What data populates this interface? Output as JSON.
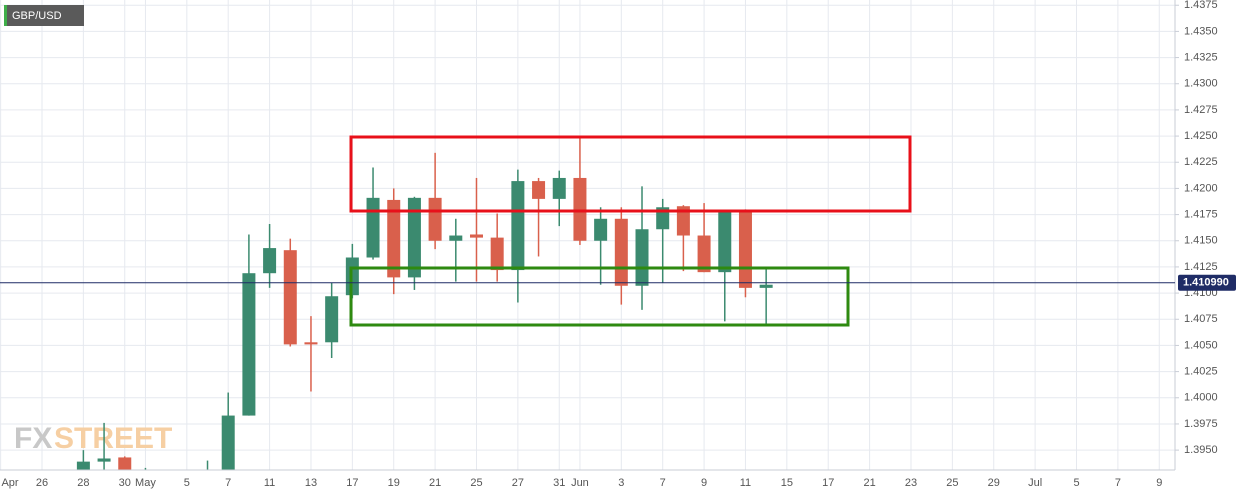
{
  "chart_data": {
    "type": "candlestick",
    "title": "GBP/USD",
    "watermark": {
      "left": "FX",
      "right": "STREET"
    },
    "categories": [
      "Apr",
      null,
      "26",
      null,
      "28",
      null,
      "30",
      "May",
      null,
      "5",
      null,
      "7",
      null,
      "11",
      null,
      "13",
      null,
      "17",
      null,
      "19",
      null,
      "21",
      null,
      "25",
      null,
      "27",
      null,
      "31",
      "Jun",
      null,
      "3",
      null,
      "7",
      null,
      "9",
      null,
      "11",
      null,
      "15",
      null,
      "17",
      null,
      "21",
      null,
      "23",
      null,
      "25",
      null,
      "29",
      null,
      "Jul",
      null,
      "5",
      null,
      "7",
      null,
      "9"
    ],
    "series": {
      "open": [
        null,
        null,
        null,
        null,
        1.3925,
        1.3939,
        1.3943,
        1.3915,
        null,
        null,
        1.391,
        1.3915,
        1.3983,
        1.4119,
        1.4141,
        1.4053,
        1.4053,
        1.4098,
        1.4134,
        1.4189,
        1.4115,
        1.4191,
        1.415,
        1.4156,
        1.4153,
        1.4122,
        1.4207,
        1.419,
        1.421,
        1.415,
        1.4171,
        1.4107,
        1.4161,
        1.4183,
        1.4155,
        1.412,
        1.4178,
        1.4105,
        null,
        null,
        null,
        null,
        null,
        null,
        null,
        null,
        null,
        null,
        null,
        null,
        null,
        null,
        null,
        null,
        null,
        null,
        null
      ],
      "high": [
        null,
        null,
        null,
        null,
        1.395,
        1.3976,
        1.3944,
        1.3933,
        null,
        null,
        1.394,
        1.4005,
        1.4156,
        1.4166,
        1.4152,
        1.4078,
        1.411,
        1.4147,
        1.422,
        1.42,
        1.4192,
        1.4234,
        1.4171,
        1.421,
        1.4176,
        1.4218,
        1.421,
        1.4217,
        1.4248,
        1.4182,
        1.4182,
        1.4202,
        1.419,
        1.4184,
        1.4186,
        1.4178,
        1.418,
        1.4124,
        null,
        null,
        null,
        null,
        null,
        null,
        null,
        null,
        null,
        null,
        null,
        null,
        null,
        null,
        null,
        null,
        null,
        null,
        null
      ],
      "low": [
        null,
        null,
        null,
        null,
        1.3915,
        1.392,
        1.3905,
        1.3905,
        null,
        null,
        1.39,
        1.3905,
        1.3983,
        1.4105,
        1.4049,
        1.4006,
        1.4038,
        1.4095,
        1.4132,
        1.4099,
        1.4103,
        1.4142,
        1.4111,
        1.4111,
        1.4111,
        1.4091,
        1.4135,
        1.4164,
        1.4146,
        1.4108,
        1.4089,
        1.4084,
        1.411,
        1.4121,
        1.412,
        1.4073,
        1.4096,
        1.407,
        null,
        null,
        null,
        null,
        null,
        null,
        null,
        null,
        null,
        null,
        null,
        null,
        null,
        null,
        null,
        null,
        null,
        null,
        null
      ],
      "close": [
        null,
        null,
        null,
        null,
        1.3939,
        1.3942,
        1.392,
        1.3925,
        null,
        null,
        1.392,
        1.3983,
        1.4119,
        1.4143,
        1.4051,
        1.4051,
        1.4097,
        1.4134,
        1.4191,
        1.4115,
        1.4191,
        1.415,
        1.4155,
        1.4153,
        1.4122,
        1.4207,
        1.419,
        1.421,
        1.415,
        1.4171,
        1.4107,
        1.4161,
        1.4182,
        1.4155,
        1.412,
        1.4178,
        1.4105,
        1.4108,
        null,
        null,
        null,
        null,
        null,
        null,
        null,
        null,
        null,
        null,
        null,
        null,
        null,
        null,
        null,
        null,
        null,
        null,
        null
      ]
    },
    "up_color": "#3b8a6f",
    "down_color": "#d9604c",
    "current_price": {
      "value": 1.41099,
      "label": "1.410990"
    },
    "current_price_color": "#1f2c66",
    "ylim": [
      1.3931,
      1.438
    ],
    "yticks": [
      1.4375,
      {
        "value": 1.435,
        "label": "1.4350"
      },
      1.4325,
      {
        "value": 1.43,
        "label": "1.4300"
      },
      1.4275,
      {
        "value": 1.425,
        "label": "1.4250"
      },
      1.4225,
      {
        "value": 1.42,
        "label": "1.4200"
      },
      1.4175,
      {
        "value": 1.415,
        "label": "1.4150"
      },
      1.4125,
      {
        "value": 1.41,
        "label": "1.4100"
      },
      1.4075,
      {
        "value": 1.405,
        "label": "1.4050"
      },
      1.4025,
      {
        "value": 1.4,
        "label": "1.4000"
      },
      1.3975,
      {
        "value": 1.395,
        "label": "1.3950"
      }
    ],
    "grid": true
  }
}
